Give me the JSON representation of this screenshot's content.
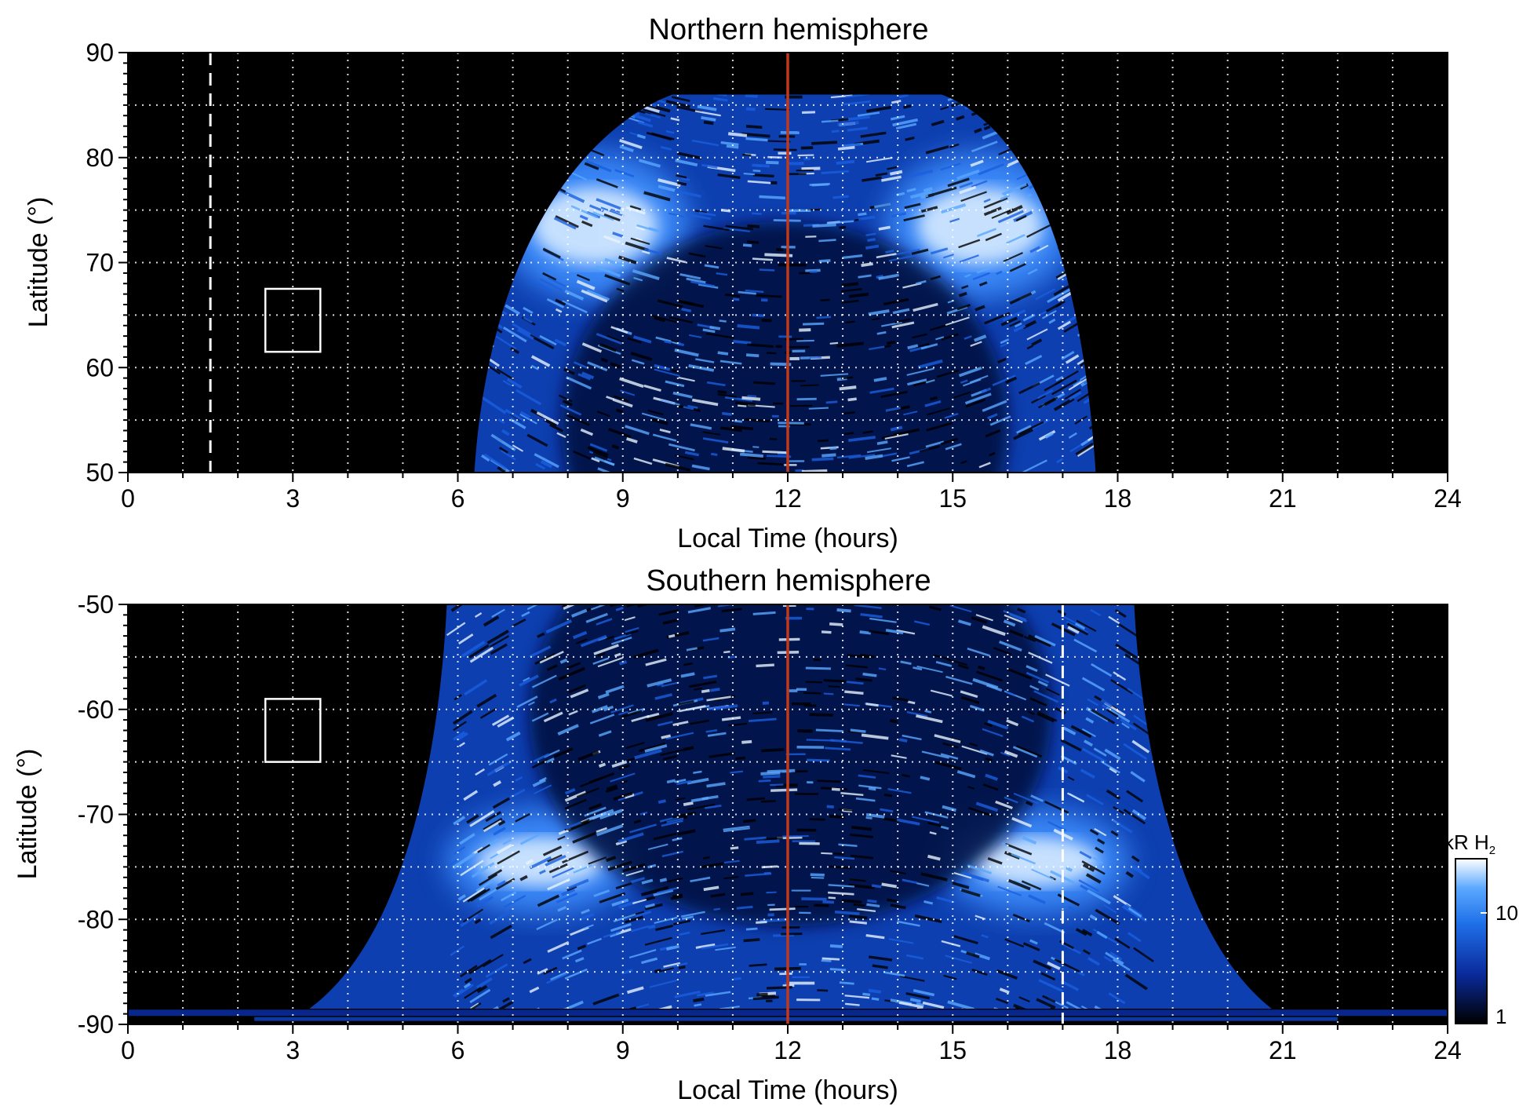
{
  "chart_data": [
    {
      "type": "heatmap",
      "title": "Northern hemisphere",
      "xlabel": "Local Time (hours)",
      "ylabel": "Latitude (°)",
      "xlim": [
        0,
        24
      ],
      "ylim": [
        50,
        90
      ],
      "xticks": [
        "0",
        "3",
        "6",
        "9",
        "12",
        "15",
        "18",
        "21",
        "24"
      ],
      "yticks": [
        "50",
        "60",
        "70",
        "80",
        "90"
      ],
      "grid": true,
      "dayside_extent_lt": [
        6.3,
        17.6
      ],
      "auroral_oval": {
        "lat_range": [
          68,
          79
        ],
        "peak_lt": [
          8.5,
          15.5
        ]
      },
      "box": {
        "lt": [
          2.5,
          3.5
        ],
        "lat": [
          61.5,
          67.5
        ]
      },
      "dashed_line_lt": 1.5,
      "noon_line_lt": 12,
      "noon_line_color": "#c0391b"
    },
    {
      "type": "heatmap",
      "title": "Southern hemisphere",
      "xlabel": "Local Time (hours)",
      "ylabel": "Latitude (°)",
      "xlim": [
        0,
        24
      ],
      "ylim": [
        -90,
        -50
      ],
      "xticks": [
        "0",
        "3",
        "6",
        "9",
        "12",
        "15",
        "18",
        "21",
        "24"
      ],
      "yticks": [
        "-90",
        "-80",
        "-70",
        "-60",
        "-50"
      ],
      "grid": true,
      "dayside_extent_lt": [
        5.8,
        18.3
      ],
      "auroral_oval": {
        "lat_range": [
          -78,
          -71
        ],
        "peak_lt": [
          7.5,
          16.5
        ]
      },
      "box": {
        "lt": [
          2.5,
          3.5
        ],
        "lat": [
          -65,
          -59
        ]
      },
      "dashed_line_lt": 17,
      "noon_line_lt": 12,
      "noon_line_color": "#c0391b"
    }
  ],
  "colorbar": {
    "title": "kR H",
    "subscript": "2",
    "ticks": [
      "1",
      "10"
    ],
    "range": [
      1,
      30
    ],
    "scale": "log",
    "colors": [
      "#000000",
      "#0a2a9a",
      "#1e6ee8",
      "#5aa8ff",
      "#ffffff"
    ]
  }
}
